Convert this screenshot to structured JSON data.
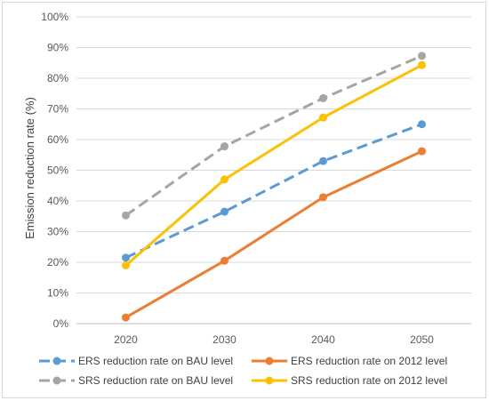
{
  "chart_data": {
    "type": "line",
    "title": "",
    "xlabel": "",
    "ylabel": "Emission reduction rate (%)",
    "categories": [
      "2020",
      "2030",
      "2040",
      "2050"
    ],
    "ylim": [
      0,
      1.0
    ],
    "yticks": [
      "0%",
      "10%",
      "20%",
      "30%",
      "40%",
      "50%",
      "60%",
      "70%",
      "80%",
      "90%",
      "100%"
    ],
    "grid": true,
    "legend_position": "bottom",
    "series": [
      {
        "name": "ERS reduction rate on BAU level",
        "values": [
          0.215,
          0.365,
          0.53,
          0.65
        ],
        "color": "#5b9bd5",
        "dashed": true
      },
      {
        "name": "ERS reduction rate on 2012 level",
        "values": [
          0.02,
          0.205,
          0.412,
          0.562
        ],
        "color": "#ed7d31",
        "dashed": false
      },
      {
        "name": "SRS reduction rate on BAU level",
        "values": [
          0.353,
          0.578,
          0.735,
          0.873
        ],
        "color": "#a5a5a5",
        "dashed": true
      },
      {
        "name": "SRS reduction rate on 2012 level",
        "values": [
          0.19,
          0.47,
          0.672,
          0.843
        ],
        "color": "#ffc000",
        "dashed": false
      }
    ]
  }
}
